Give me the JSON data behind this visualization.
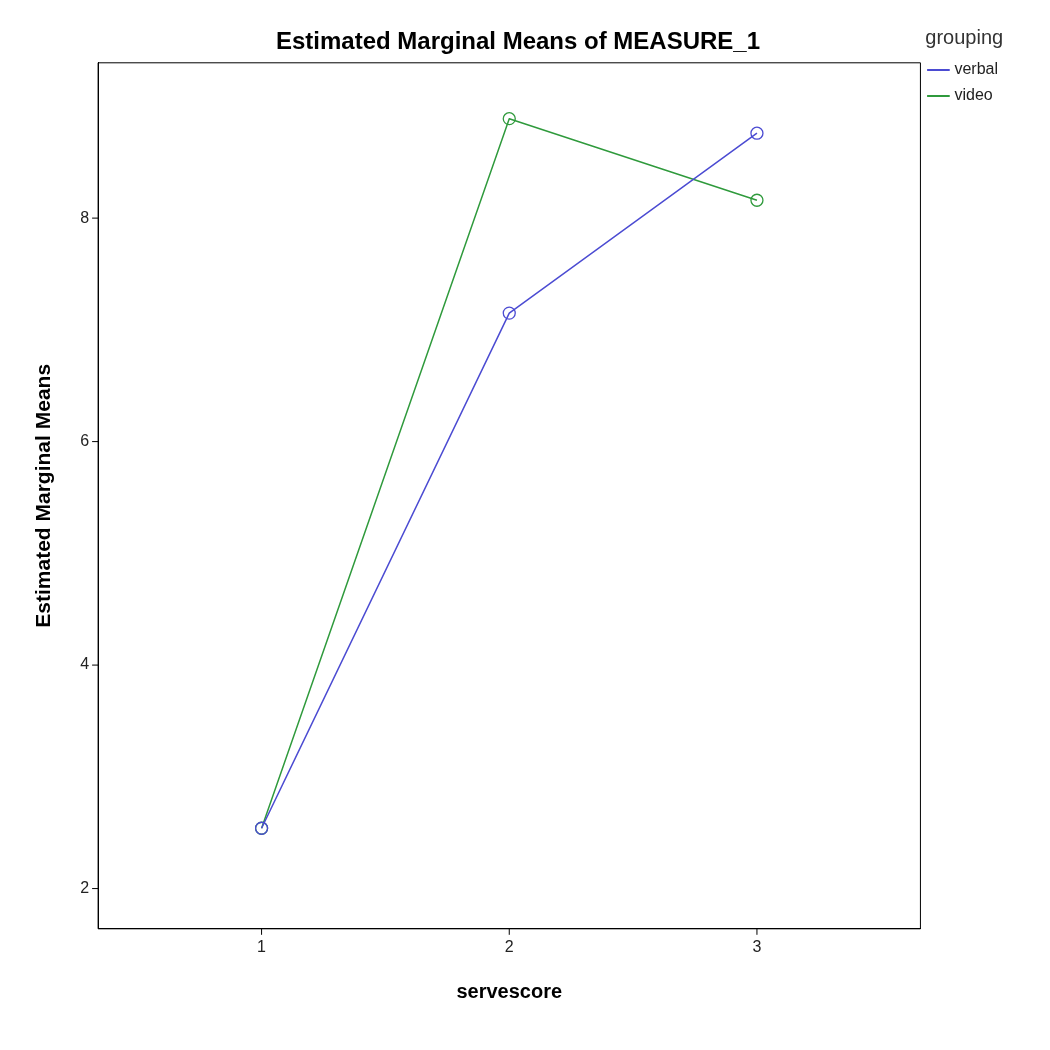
{
  "chart_data": {
    "type": "line",
    "title": "Estimated Marginal Means of MEASURE_1",
    "xlabel": "servescore",
    "ylabel": "Estimated Marginal Means",
    "legend_title": "grouping",
    "x": [
      1,
      2,
      3
    ],
    "xlim": [
      0.34,
      3.66
    ],
    "xticks": [
      1,
      2,
      3
    ],
    "ylim": [
      1.64,
      9.39
    ],
    "yticks": [
      2,
      4,
      6,
      8
    ],
    "series": [
      {
        "name": "verbal",
        "color": "#4b4bd2",
        "values": [
          2.54,
          7.15,
          8.76
        ]
      },
      {
        "name": "video",
        "color": "#2f9a3c",
        "values": [
          2.54,
          8.89,
          8.16
        ]
      }
    ],
    "marker": "circle",
    "line_style": "solid",
    "grid": false,
    "legend": "top right"
  }
}
